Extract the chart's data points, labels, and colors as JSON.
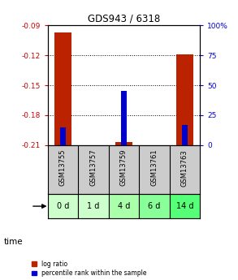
{
  "title": "GDS943 / 6318",
  "samples": [
    "GSM13755",
    "GSM13757",
    "GSM13759",
    "GSM13761",
    "GSM13763"
  ],
  "time_labels": [
    "0 d",
    "1 d",
    "4 d",
    "6 d",
    "14 d"
  ],
  "log_ratio_values": [
    -0.097,
    0.0,
    -0.207,
    0.0,
    -0.119
  ],
  "percentile_values": [
    15.0,
    0.0,
    45.0,
    0.0,
    17.0
  ],
  "ylim": [
    -0.21,
    -0.09
  ],
  "yticks": [
    -0.21,
    -0.18,
    -0.15,
    -0.12,
    -0.09
  ],
  "ytick_labels": [
    "-0.21",
    "-0.18",
    "-0.15",
    "-0.12",
    "-0.09"
  ],
  "y2lim": [
    0,
    100
  ],
  "y2ticks": [
    0,
    25,
    50,
    75,
    100
  ],
  "y2tick_labels": [
    "0",
    "25",
    "50",
    "75",
    "100%"
  ],
  "bar_width": 0.55,
  "pct_bar_width": 0.2,
  "time_bg_colors": [
    "#ccffcc",
    "#ccffcc",
    "#aaffaa",
    "#88ff99",
    "#55ff77"
  ],
  "sample_bg_color": "#cccccc",
  "log_ratio_color": "#bb2200",
  "percentile_color": "#0000cc",
  "legend_ratio_color": "#bb2200",
  "legend_pct_color": "#0000cc"
}
